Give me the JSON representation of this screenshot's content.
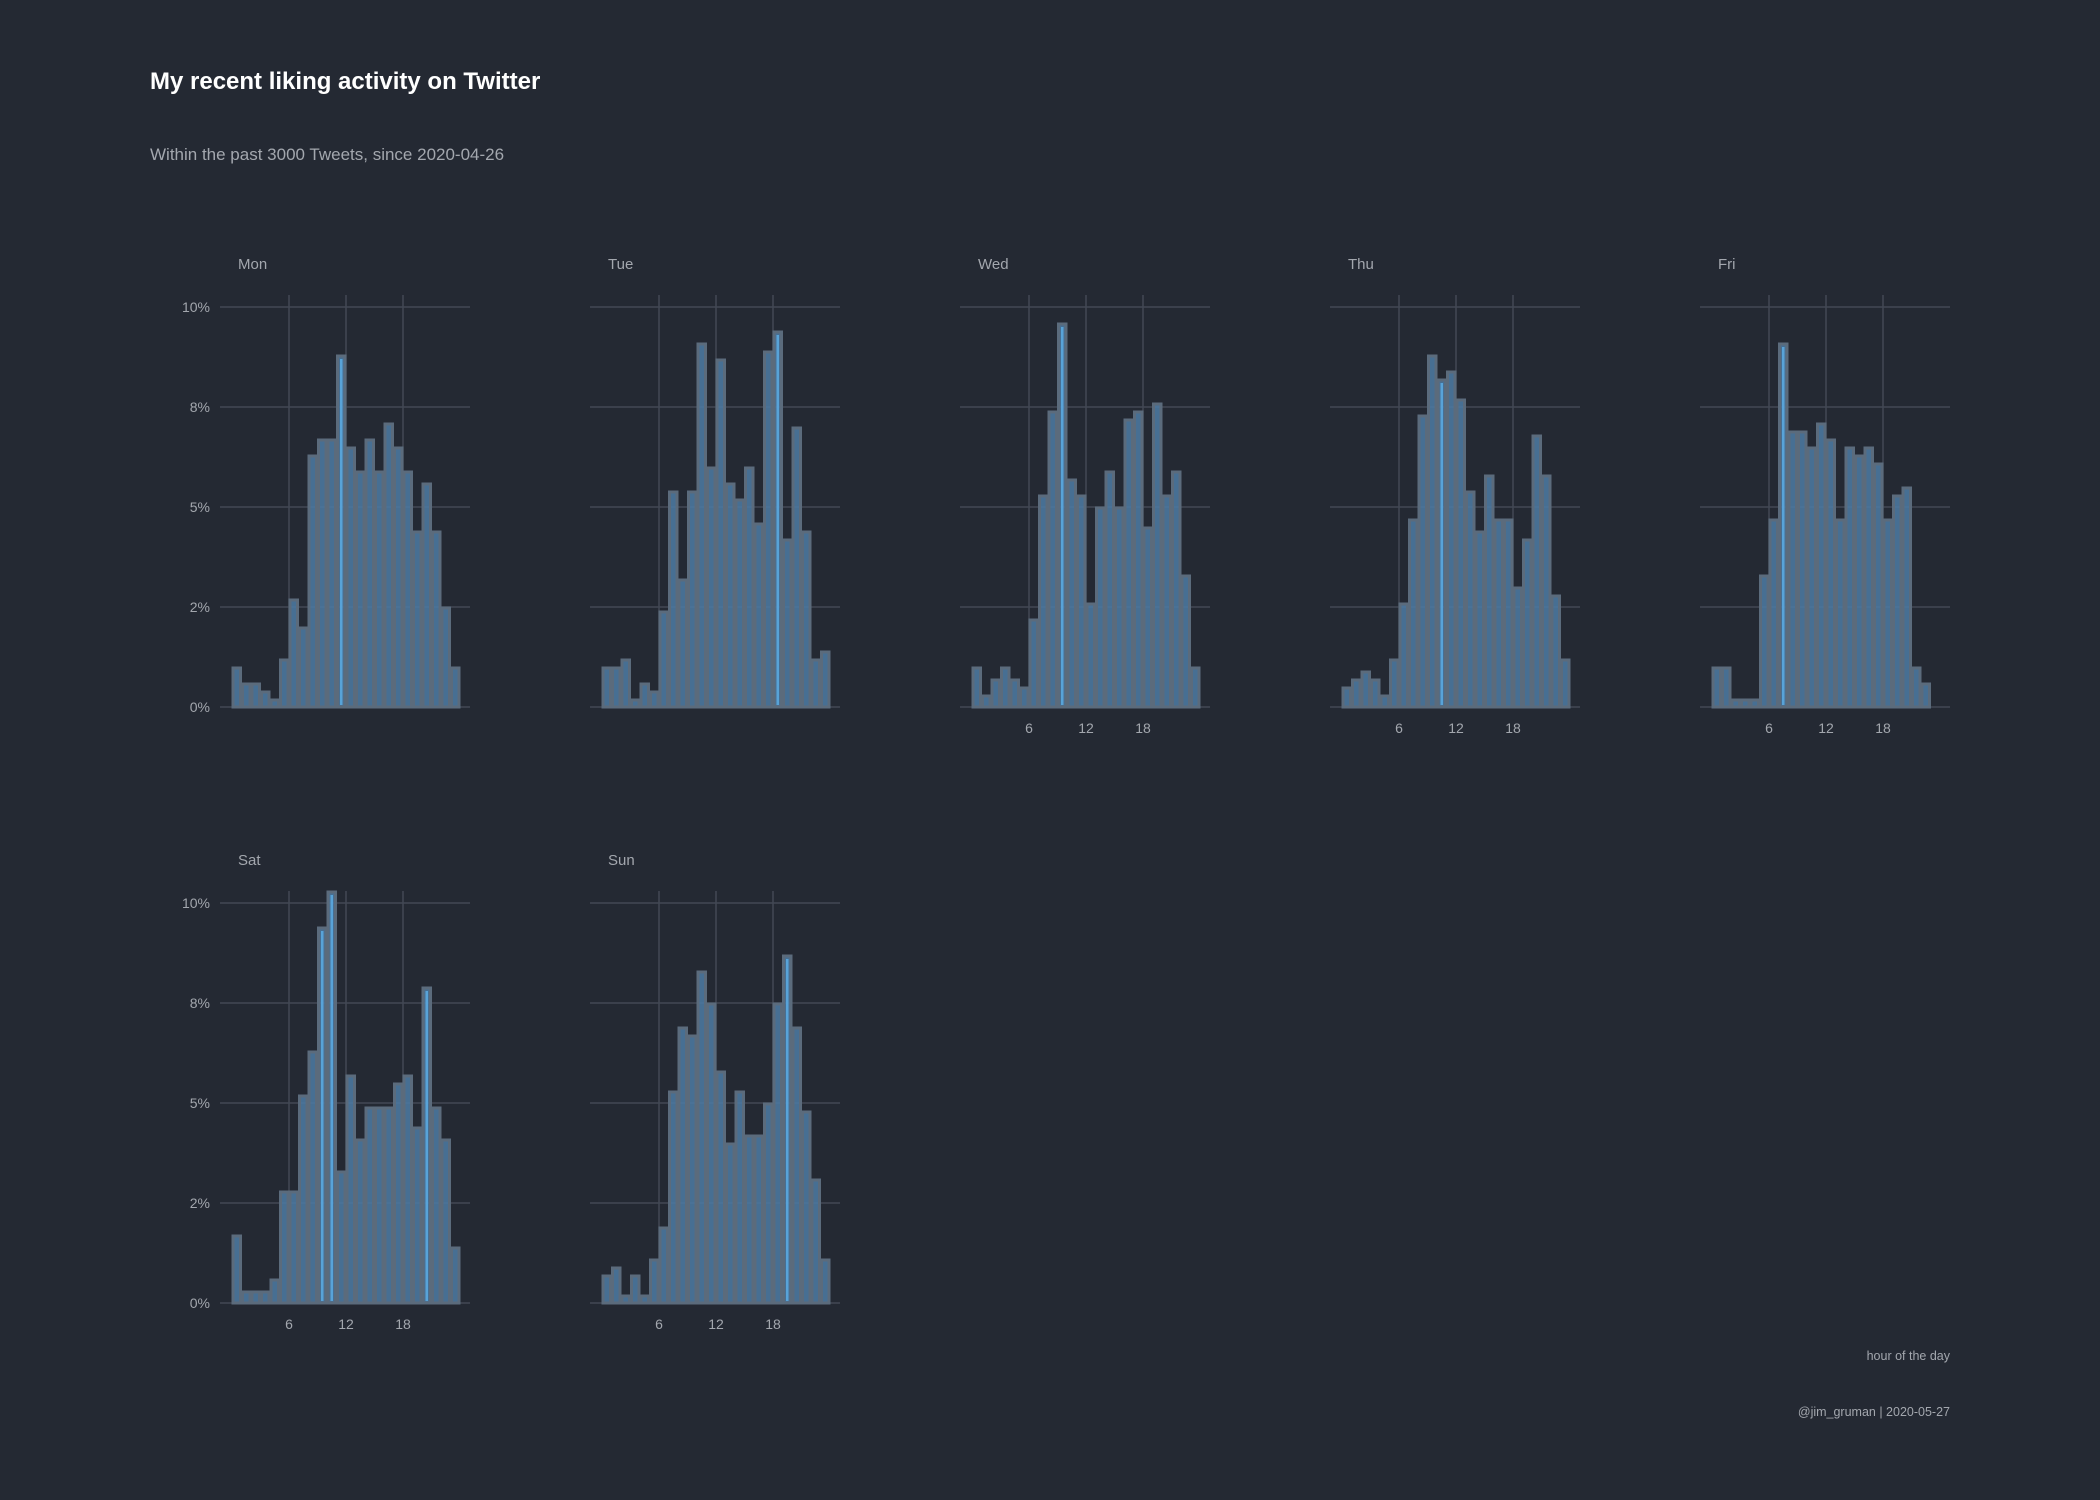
{
  "header": {
    "title": "My recent liking activity on Twitter",
    "subtitle": "Within the past 3000 Tweets, since 2020-04-26"
  },
  "footer": {
    "x_axis_caption": "hour of the day",
    "caption": "@jim_gruman | 2020-05-27"
  },
  "colors": {
    "background": "#242933",
    "grid": "#434955",
    "bar_fill": "#4e7ba5",
    "bar_outline": "#5b6b7c",
    "highlight": "#5aa8e0",
    "text": "#a3a7ae"
  },
  "chart_data": {
    "type": "bar",
    "facet_type": "histogram small multiples",
    "ylim": [
      0,
      10
    ],
    "y_ticks": [
      0,
      2.5,
      5,
      7.5,
      10
    ],
    "y_tick_labels": [
      "0%",
      "2%",
      "5%",
      "8%",
      "10%"
    ],
    "x_ticks": [
      6,
      12,
      18
    ],
    "x_tick_labels": [
      "6",
      "12",
      "18"
    ],
    "grid": true,
    "x_unit": "hour of the day",
    "panels": [
      {
        "label": "Mon",
        "show_y_axis": true,
        "show_x_axis": false,
        "values": [
          1.0,
          0.6,
          0.6,
          0.4,
          0.2,
          1.2,
          2.7,
          2.0,
          6.3,
          6.7,
          6.7,
          8.8,
          6.5,
          5.9,
          6.7,
          5.9,
          7.1,
          6.5,
          5.9,
          4.4,
          5.6,
          4.4,
          2.5,
          1.0
        ],
        "highlight": [
          11
        ]
      },
      {
        "label": "Tue",
        "show_y_axis": false,
        "show_x_axis": false,
        "values": [
          1.0,
          1.0,
          1.2,
          0.2,
          0.6,
          0.4,
          2.4,
          5.4,
          3.2,
          5.4,
          9.1,
          6.0,
          8.7,
          5.6,
          5.2,
          6.0,
          4.6,
          8.9,
          9.4,
          4.2,
          7.0,
          4.4,
          1.2,
          1.4
        ],
        "highlight": [
          18
        ]
      },
      {
        "label": "Wed",
        "show_y_axis": false,
        "show_x_axis": true,
        "values": [
          1.0,
          0.3,
          0.7,
          1.0,
          0.7,
          0.5,
          2.2,
          5.3,
          7.4,
          9.6,
          5.7,
          5.3,
          2.6,
          5.0,
          5.9,
          5.0,
          7.2,
          7.4,
          4.5,
          7.6,
          5.3,
          5.9,
          3.3,
          1.0
        ],
        "highlight": [
          9
        ]
      },
      {
        "label": "Thu",
        "show_y_axis": false,
        "show_x_axis": true,
        "values": [
          0.5,
          0.7,
          0.9,
          0.7,
          0.3,
          1.2,
          2.6,
          4.7,
          7.3,
          8.8,
          8.2,
          8.4,
          7.7,
          5.4,
          4.4,
          5.8,
          4.7,
          4.7,
          3.0,
          4.2,
          6.8,
          5.8,
          2.8,
          1.2
        ],
        "highlight": [
          10
        ]
      },
      {
        "label": "Fri",
        "show_y_axis": false,
        "show_x_axis": true,
        "values": [
          1.0,
          1.0,
          0.2,
          0.2,
          0.2,
          3.3,
          4.7,
          9.1,
          6.9,
          6.9,
          6.5,
          7.1,
          6.7,
          4.7,
          6.5,
          6.3,
          6.5,
          6.1,
          4.7,
          5.3,
          5.5,
          1.0,
          0.6,
          0.0
        ],
        "highlight": [
          7
        ]
      },
      {
        "label": "Sat",
        "show_y_axis": true,
        "show_x_axis": true,
        "values": [
          1.7,
          0.3,
          0.3,
          0.3,
          0.6,
          2.8,
          2.8,
          5.2,
          6.3,
          9.4,
          10.3,
          3.3,
          5.7,
          4.1,
          4.9,
          4.9,
          4.9,
          5.5,
          5.7,
          4.4,
          7.9,
          4.9,
          4.1,
          1.4
        ],
        "highlight": [
          9,
          10,
          20
        ]
      },
      {
        "label": "Sun",
        "show_y_axis": false,
        "show_x_axis": true,
        "values": [
          0.7,
          0.9,
          0.2,
          0.7,
          0.2,
          1.1,
          1.9,
          5.3,
          6.9,
          6.7,
          8.3,
          7.5,
          5.8,
          4.0,
          5.3,
          4.2,
          4.2,
          5.0,
          7.5,
          8.7,
          6.9,
          4.8,
          3.1,
          1.1
        ],
        "highlight": [
          19
        ]
      }
    ]
  }
}
